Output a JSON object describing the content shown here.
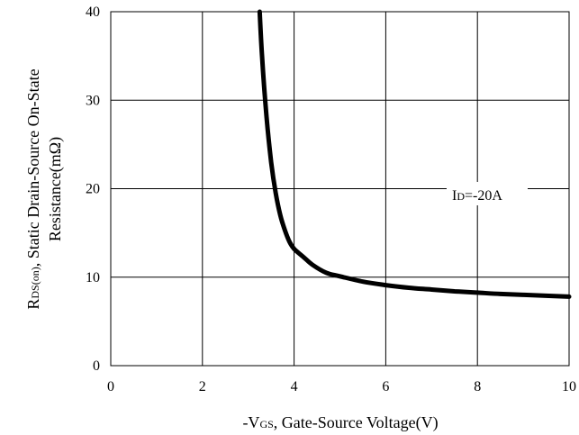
{
  "chart_data": {
    "type": "line",
    "xlabel": {
      "prefix": "-V",
      "sub": "GS",
      "suffix": ", Gate-Source Voltage(V)"
    },
    "ylabel": {
      "line1": {
        "prefix": "R",
        "sub": "DS(on)",
        "suffix": ", Static Drain-Source On-State"
      },
      "line2": "Resistance(mΩ)"
    },
    "xlim": [
      0,
      10
    ],
    "ylim": [
      0,
      40
    ],
    "x_ticks": [
      "0",
      "2",
      "4",
      "6",
      "8",
      "10"
    ],
    "y_ticks": [
      "0",
      "10",
      "20",
      "30",
      "40"
    ],
    "grid": true,
    "annotation": {
      "prefix": "I",
      "sub": "D",
      "suffix": "=-20A"
    },
    "series": [
      {
        "x": [
          3.25,
          3.3,
          3.4,
          3.5,
          3.6,
          3.7,
          3.8,
          3.9,
          4.0,
          4.2,
          4.4,
          4.7,
          5.0,
          5.5,
          6.0,
          6.5,
          7.0,
          7.5,
          8.0,
          8.5,
          9.0,
          9.5,
          10.0
        ],
        "y": [
          40,
          35,
          28,
          23,
          19.5,
          17,
          15.3,
          14,
          13.2,
          12.3,
          11.4,
          10.5,
          10.1,
          9.5,
          9.1,
          8.8,
          8.6,
          8.4,
          8.25,
          8.1,
          8.0,
          7.9,
          7.8
        ]
      }
    ],
    "colors": {
      "line": "#000000",
      "grid": "#000000"
    }
  }
}
